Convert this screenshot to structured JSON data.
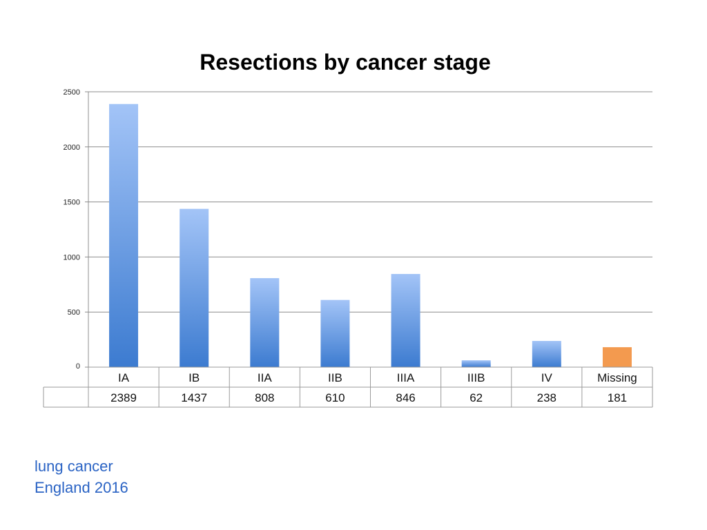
{
  "chart_data": {
    "type": "bar",
    "title": "Resections by cancer stage",
    "categories": [
      "IA",
      "IB",
      "IIA",
      "IIB",
      "IIIA",
      "IIIB",
      "IV",
      "Missing"
    ],
    "values": [
      2389,
      1437,
      808,
      610,
      846,
      62,
      238,
      181
    ],
    "ylim": [
      0,
      2500
    ],
    "yticks": [
      0,
      500,
      1000,
      1500,
      2000,
      2500
    ],
    "grid": true,
    "data_table": true,
    "colors": {
      "bar_top": "#a3c4f7",
      "bar_bottom": "#3c7bd0",
      "missing_bar": "#f39a4f",
      "grid": "#8c8c8c",
      "table_border": "#9a9a9a"
    }
  },
  "footnote": {
    "line1": "lung cancer",
    "line2": "England 2016"
  }
}
